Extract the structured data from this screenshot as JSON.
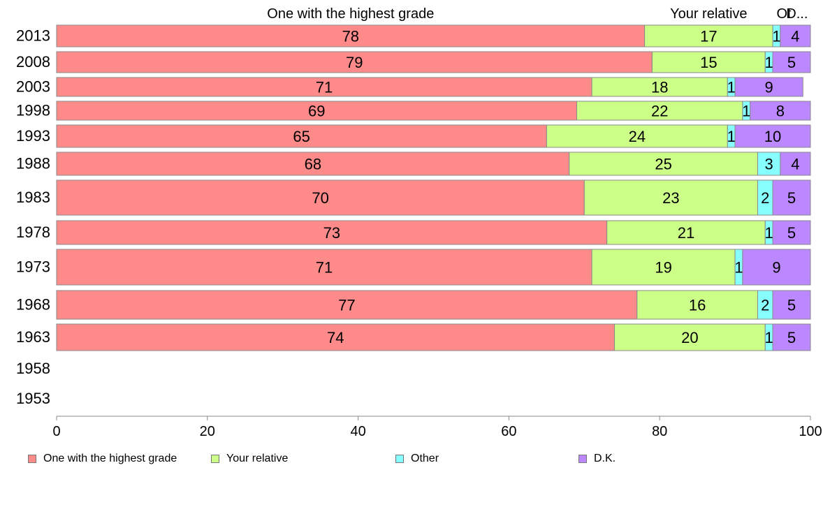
{
  "chart_data": {
    "type": "bar",
    "orientation": "horizontal",
    "stacked": true,
    "categories": [
      "2013",
      "2008",
      "2003",
      "1998",
      "1993",
      "1988",
      "1983",
      "1978",
      "1973",
      "1968",
      "1963",
      "1958",
      "1953"
    ],
    "series": [
      {
        "name": "One with the highest grade",
        "header": "One with the highest grade",
        "color": "#ff8a8a",
        "values": [
          78,
          79,
          71,
          69,
          65,
          68,
          70,
          73,
          71,
          77,
          74,
          null,
          null
        ]
      },
      {
        "name": "Your relative",
        "header": "Your relative",
        "color": "#ccff88",
        "values": [
          17,
          15,
          18,
          22,
          24,
          25,
          23,
          21,
          19,
          16,
          20,
          null,
          null
        ]
      },
      {
        "name": "Other",
        "header": "Ot",
        "color": "#88ffff",
        "values": [
          1,
          1,
          1,
          1,
          1,
          3,
          2,
          1,
          1,
          2,
          1,
          null,
          null
        ]
      },
      {
        "name": "D.K.",
        "header": "D...",
        "color": "#bb88ff",
        "values": [
          4,
          5,
          9,
          8,
          10,
          4,
          5,
          5,
          9,
          5,
          5,
          null,
          null
        ]
      }
    ],
    "xlim": [
      0,
      100
    ],
    "xticks": [
      "0",
      "20",
      "40",
      "60",
      "80",
      "100"
    ],
    "legend_position": "bottom",
    "grid": false
  }
}
